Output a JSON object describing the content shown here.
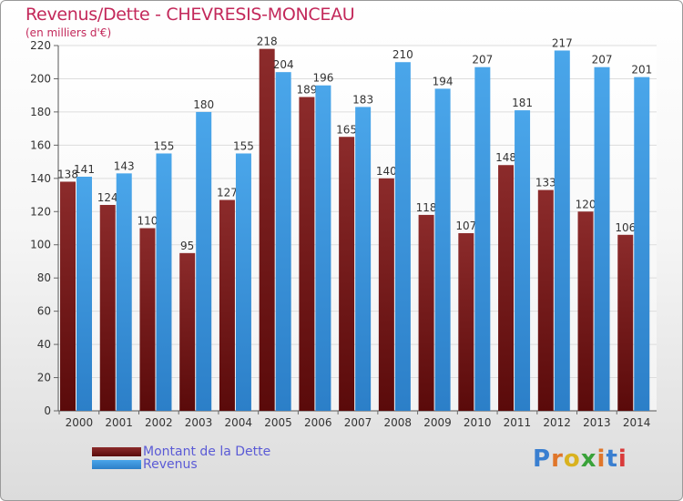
{
  "title": "Revenus/Dette - CHEVRESIS-MONCEAU",
  "subtitle": "(en milliers d'€)",
  "logo": {
    "text": "Proxiti"
  },
  "chart_data": {
    "type": "bar",
    "categories": [
      "2000",
      "2001",
      "2002",
      "2003",
      "2004",
      "2005",
      "2006",
      "2007",
      "2008",
      "2009",
      "2010",
      "2011",
      "2012",
      "2013",
      "2014"
    ],
    "series": [
      {
        "name": "Montant de la Dette",
        "values": [
          138,
          124,
          110,
          95,
          127,
          218,
          189,
          165,
          140,
          118,
          107,
          148,
          133,
          120,
          106
        ],
        "color": "#7a1c1c"
      },
      {
        "name": "Revenus",
        "values": [
          141,
          143,
          155,
          180,
          155,
          204,
          196,
          183,
          210,
          194,
          207,
          181,
          217,
          207,
          201
        ],
        "color": "#3a97dd"
      }
    ],
    "ylim": [
      0,
      220
    ],
    "yticks": [
      0,
      20,
      40,
      60,
      80,
      100,
      120,
      140,
      160,
      180,
      200,
      220
    ],
    "grid": true,
    "legend": "bottom-left"
  }
}
